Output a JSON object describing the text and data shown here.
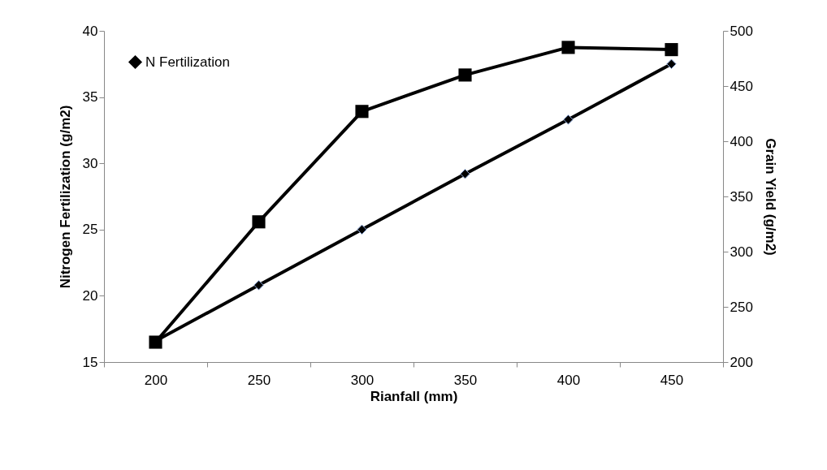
{
  "chart_data": {
    "type": "line",
    "xlabel": "Rianfall (mm)",
    "ylabel": "Nitrogen Fertilization (g/m2)",
    "y2label": "Grain Yield (g/m2)",
    "categories": [
      "200",
      "250",
      "300",
      "350",
      "400",
      "450"
    ],
    "series": [
      {
        "name": "N Fertilization",
        "color": "#000000",
        "marker": "diamond",
        "values": [
          16.6,
          20.8,
          25.0,
          29.2,
          33.3,
          37.5
        ]
      },
      {
        "color": "#000000",
        "marker": "square",
        "axis": "y2",
        "values": [
          218,
          327,
          427,
          460,
          485,
          483
        ]
      }
    ],
    "ylim": [
      15,
      40
    ],
    "yticks": [
      15,
      20,
      25,
      30,
      35,
      40
    ],
    "y2lim": [
      200,
      500
    ],
    "y2ticks": [
      200,
      250,
      300,
      350,
      400,
      450,
      500
    ],
    "legend": "top left"
  }
}
